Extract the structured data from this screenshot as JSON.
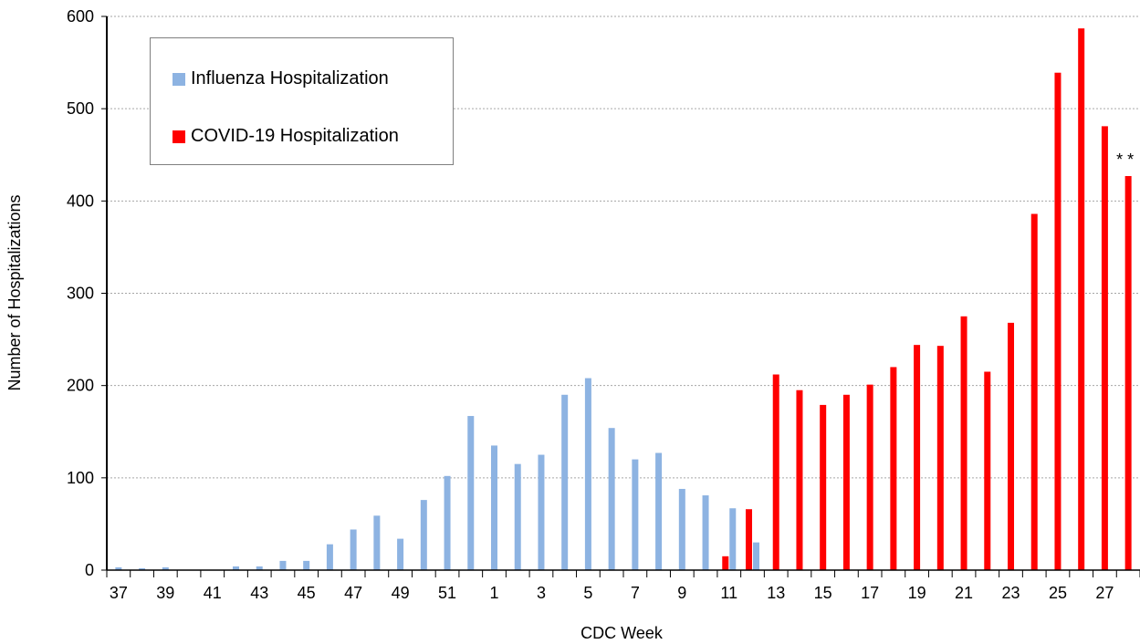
{
  "chart_data": {
    "type": "bar",
    "xlabel": "CDC Week",
    "ylabel": "Number of Hospitalizations",
    "ylim": [
      0,
      600
    ],
    "yticks": [
      0,
      100,
      200,
      300,
      400,
      500,
      600
    ],
    "grid": true,
    "legend_position": "top-left",
    "categories": [
      37,
      38,
      39,
      40,
      41,
      42,
      43,
      44,
      45,
      46,
      47,
      48,
      49,
      50,
      51,
      52,
      1,
      2,
      3,
      4,
      5,
      6,
      7,
      8,
      9,
      10,
      11,
      12,
      13,
      14,
      15,
      16,
      17,
      18,
      19,
      20,
      21,
      22,
      23,
      24,
      25,
      26,
      27,
      28
    ],
    "tick_labels": [
      "37",
      "39",
      "41",
      "43",
      "45",
      "47",
      "49",
      "51",
      "1",
      "3",
      "5",
      "7",
      "9",
      "11",
      "13",
      "15",
      "17",
      "19",
      "21",
      "23",
      "25",
      "27"
    ],
    "series": [
      {
        "name": "Influenza Hospitalization",
        "color": "#8db3e2",
        "values": [
          3,
          2,
          3,
          0,
          0,
          4,
          4,
          10,
          10,
          28,
          44,
          59,
          34,
          76,
          102,
          167,
          135,
          115,
          125,
          190,
          208,
          154,
          120,
          127,
          88,
          81,
          67,
          30,
          null,
          null,
          null,
          null,
          null,
          null,
          null,
          null,
          null,
          null,
          null,
          null,
          null,
          null,
          null,
          null
        ]
      },
      {
        "name": "COVID-19 Hospitalization",
        "color": "#ff0000",
        "values": [
          null,
          null,
          null,
          null,
          null,
          null,
          null,
          null,
          null,
          null,
          null,
          null,
          null,
          null,
          null,
          null,
          null,
          null,
          null,
          null,
          null,
          null,
          null,
          null,
          null,
          null,
          15,
          66,
          212,
          195,
          179,
          190,
          201,
          220,
          244,
          243,
          275,
          215,
          268,
          386,
          539,
          587,
          481,
          427
        ]
      }
    ],
    "annotation": {
      "text": "* *",
      "category": 28
    }
  }
}
